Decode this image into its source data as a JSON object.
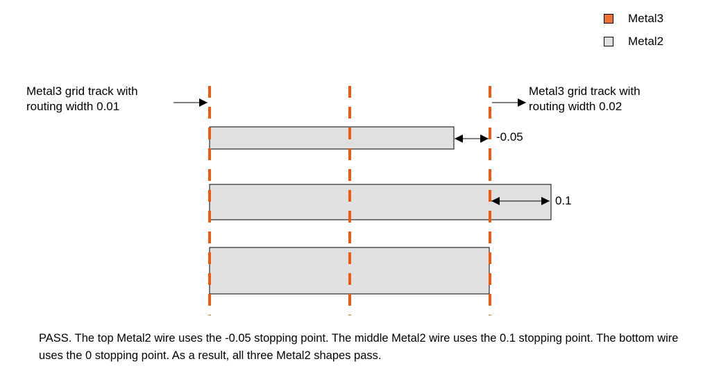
{
  "colors": {
    "metal3": "#f07030",
    "metal2": "#e0e0e0",
    "track": "#ee5a14",
    "stroke": "#000000"
  },
  "legend": {
    "items": [
      {
        "label": "Metal3",
        "color": "#f07030"
      },
      {
        "label": "Metal2",
        "color": "#e0e0e0"
      }
    ]
  },
  "labels": {
    "left_track_line1": "Metal3 grid track with",
    "left_track_line2": "routing width 0.01",
    "right_track_line1": "Metal3 grid track with",
    "right_track_line2": "routing width 0.02",
    "top_wire_offset": "-0.05",
    "middle_wire_offset": "0.1"
  },
  "caption": {
    "text": "PASS. The top Metal2 wire uses the -0.05 stopping point. The middle Metal2 wire uses the 0.1 stopping point. The bottom wire uses the 0 stopping point. As a result, all three Metal2 shapes pass."
  }
}
